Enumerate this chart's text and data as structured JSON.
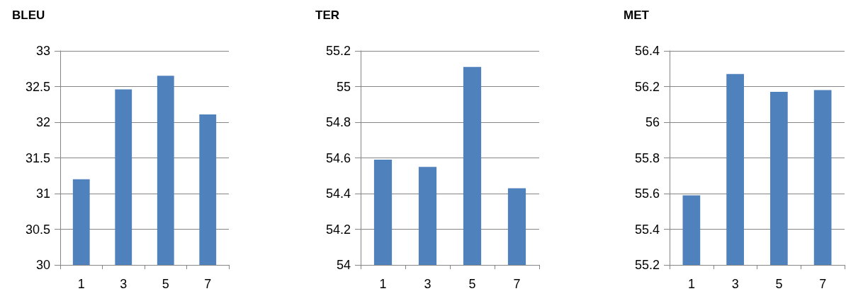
{
  "chart_data": [
    {
      "type": "bar",
      "title": "BLEU",
      "categories": [
        "1",
        "3",
        "5",
        "7"
      ],
      "values": [
        31.2,
        32.46,
        32.65,
        32.11
      ],
      "color": "#4f81bd",
      "ylim": [
        30,
        33
      ],
      "yticks": [
        30,
        30.5,
        31,
        31.5,
        32,
        32.5,
        33
      ],
      "grid": "y"
    },
    {
      "type": "bar",
      "title": "TER",
      "categories": [
        "1",
        "3",
        "5",
        "7"
      ],
      "values": [
        54.59,
        54.55,
        55.11,
        54.43
      ],
      "color": "#4f81bd",
      "ylim": [
        54,
        55.2
      ],
      "yticks": [
        54,
        54.2,
        54.4,
        54.6,
        54.8,
        55,
        55.2
      ],
      "grid": "y"
    },
    {
      "type": "bar",
      "title": "MET",
      "categories": [
        "1",
        "3",
        "5",
        "7"
      ],
      "values": [
        55.59,
        56.27,
        56.17,
        56.18
      ],
      "color": "#4f81bd",
      "ylim": [
        55.2,
        56.4
      ],
      "yticks": [
        55.2,
        55.4,
        55.6,
        55.8,
        56,
        56.2,
        56.4
      ],
      "grid": "y"
    }
  ]
}
